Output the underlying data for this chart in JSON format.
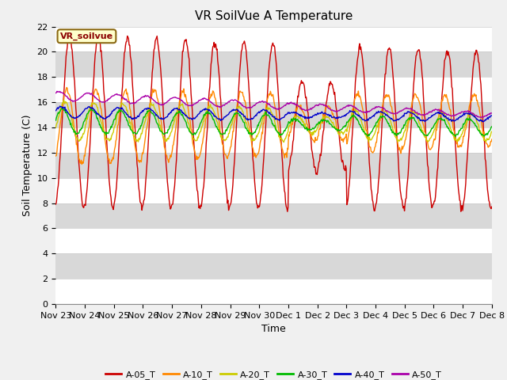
{
  "title": "VR SoilVue A Temperature",
  "xlabel": "Time",
  "ylabel": "Soil Temperature (C)",
  "ylim": [
    0,
    22
  ],
  "yticks": [
    0,
    2,
    4,
    6,
    8,
    10,
    12,
    14,
    16,
    18,
    20,
    22
  ],
  "xtick_labels": [
    "Nov 23",
    "Nov 24",
    "Nov 25",
    "Nov 26",
    "Nov 27",
    "Nov 28",
    "Nov 29",
    "Nov 30",
    "Dec 1",
    "Dec 2",
    "Dec 3",
    "Dec 4",
    "Dec 5",
    "Dec 6",
    "Dec 7",
    "Dec 8"
  ],
  "legend_label": "VR_soilvue",
  "series_labels": [
    "A-05_T",
    "A-10_T",
    "A-20_T",
    "A-30_T",
    "A-40_T",
    "A-50_T"
  ],
  "series_colors": [
    "#cc0000",
    "#ff8800",
    "#cccc00",
    "#00bb00",
    "#0000cc",
    "#aa00aa"
  ],
  "bg_color": "#f0f0f0",
  "white_band": "#ffffff",
  "gray_band": "#d8d8d8",
  "title_fontsize": 11,
  "axis_fontsize": 9,
  "tick_fontsize": 8
}
